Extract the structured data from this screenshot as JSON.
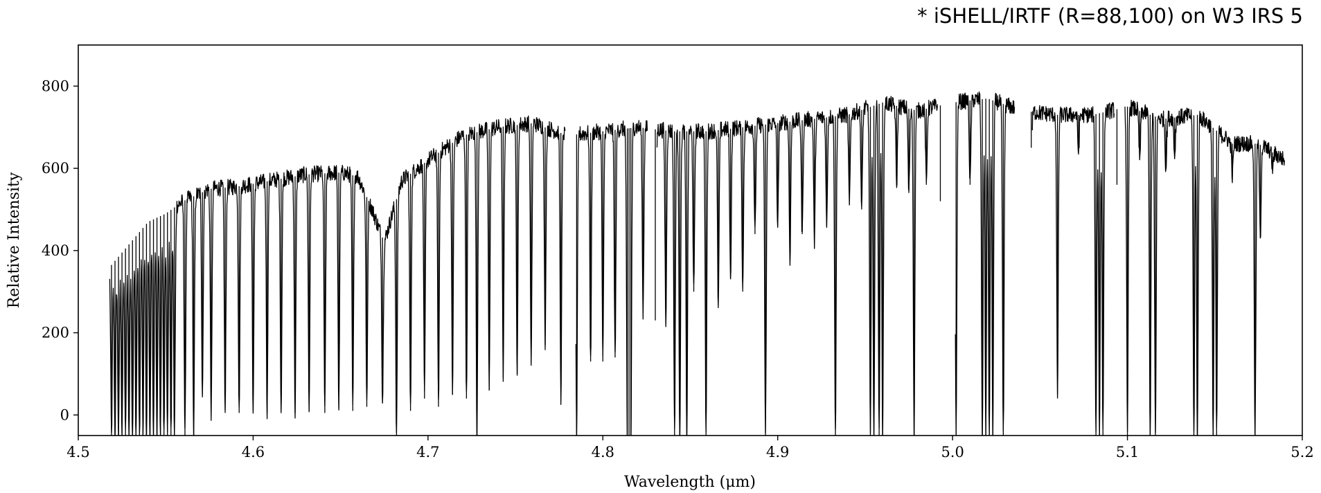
{
  "chart_data": {
    "type": "line",
    "title": "* iSHELL/IRTF (R=88,100) on W3 IRS 5",
    "xlabel": "Wavelength (μm)",
    "ylabel": "Relative Intensity",
    "xlim": [
      4.5,
      5.2
    ],
    "ylim": [
      -50,
      900
    ],
    "xticks": [
      "4.5",
      "4.6",
      "4.7",
      "4.8",
      "4.9",
      "5.0",
      "5.1",
      "5.2"
    ],
    "yticks": [
      "0",
      "200",
      "400",
      "600",
      "800"
    ],
    "grid": false,
    "line_color": "#000000",
    "continuum": {
      "x": [
        4.518,
        4.53,
        4.54,
        4.55,
        4.56,
        4.575,
        4.59,
        4.61,
        4.63,
        4.65,
        4.66,
        4.668,
        4.675,
        4.685,
        4.7,
        4.72,
        4.74,
        4.76,
        4.78,
        4.8,
        4.82,
        4.84,
        4.86,
        4.88,
        4.9,
        4.92,
        4.94,
        4.96,
        4.98,
        5.0,
        5.02,
        5.04,
        5.06,
        5.08,
        5.1,
        5.12,
        5.14,
        5.16,
        5.175,
        5.19
      ],
      "y": [
        360,
        420,
        470,
        490,
        520,
        550,
        555,
        570,
        585,
        590,
        580,
        500,
        420,
        570,
        620,
        680,
        700,
        710,
        680,
        690,
        700,
        690,
        690,
        700,
        710,
        720,
        730,
        760,
        740,
        760,
        770,
        740,
        730,
        730,
        750,
        720,
        730,
        660,
        660,
        620
      ]
    },
    "absorption_lines": [
      {
        "x": 4.519,
        "y": -50
      },
      {
        "x": 4.521,
        "y": -50
      },
      {
        "x": 4.523,
        "y": -50
      },
      {
        "x": 4.525,
        "y": -50
      },
      {
        "x": 4.527,
        "y": -50
      },
      {
        "x": 4.529,
        "y": -50
      },
      {
        "x": 4.531,
        "y": -50
      },
      {
        "x": 4.533,
        "y": -50
      },
      {
        "x": 4.535,
        "y": -50
      },
      {
        "x": 4.537,
        "y": -50
      },
      {
        "x": 4.539,
        "y": -50
      },
      {
        "x": 4.541,
        "y": -50
      },
      {
        "x": 4.543,
        "y": -50
      },
      {
        "x": 4.545,
        "y": -50
      },
      {
        "x": 4.547,
        "y": -50
      },
      {
        "x": 4.549,
        "y": -50
      },
      {
        "x": 4.551,
        "y": -50
      },
      {
        "x": 4.553,
        "y": -50
      },
      {
        "x": 4.555,
        "y": -50
      },
      {
        "x": 4.561,
        "y": -50
      },
      {
        "x": 4.566,
        "y": -50
      },
      {
        "x": 4.571,
        "y": 50
      },
      {
        "x": 4.576,
        "y": 5
      },
      {
        "x": 4.584,
        "y": 5
      },
      {
        "x": 4.592,
        "y": 5
      },
      {
        "x": 4.6,
        "y": 10
      },
      {
        "x": 4.608,
        "y": 5
      },
      {
        "x": 4.616,
        "y": 10
      },
      {
        "x": 4.624,
        "y": 5
      },
      {
        "x": 4.632,
        "y": 10
      },
      {
        "x": 4.641,
        "y": 5
      },
      {
        "x": 4.649,
        "y": 15
      },
      {
        "x": 4.657,
        "y": 10
      },
      {
        "x": 4.665,
        "y": 20
      },
      {
        "x": 4.674,
        "y": 30
      },
      {
        "x": 4.682,
        "y": -50
      },
      {
        "x": 4.69,
        "y": 10
      },
      {
        "x": 4.698,
        "y": 40
      },
      {
        "x": 4.706,
        "y": 20
      },
      {
        "x": 4.714,
        "y": 50
      },
      {
        "x": 4.722,
        "y": 40
      },
      {
        "x": 4.728,
        "y": -50
      },
      {
        "x": 4.735,
        "y": 60
      },
      {
        "x": 4.743,
        "y": 90
      },
      {
        "x": 4.751,
        "y": 100
      },
      {
        "x": 4.759,
        "y": 120
      },
      {
        "x": 4.767,
        "y": 170
      },
      {
        "x": 4.776,
        "y": 40
      },
      {
        "x": 4.785,
        "y": -50
      },
      {
        "x": 4.793,
        "y": 130
      },
      {
        "x": 4.8,
        "y": 130
      },
      {
        "x": 4.807,
        "y": 140
      },
      {
        "x": 4.814,
        "y": -50
      },
      {
        "x": 4.815,
        "y": -50
      },
      {
        "x": 4.816,
        "y": -50
      },
      {
        "x": 4.823,
        "y": 250
      },
      {
        "x": 4.83,
        "y": 230
      },
      {
        "x": 4.836,
        "y": 220
      },
      {
        "x": 4.841,
        "y": -50
      },
      {
        "x": 4.844,
        "y": -50
      },
      {
        "x": 4.848,
        "y": -50
      },
      {
        "x": 4.852,
        "y": 300
      },
      {
        "x": 4.859,
        "y": -50
      },
      {
        "x": 4.866,
        "y": 260
      },
      {
        "x": 4.873,
        "y": 330
      },
      {
        "x": 4.88,
        "y": 300
      },
      {
        "x": 4.887,
        "y": 440
      },
      {
        "x": 4.893,
        "y": -50
      },
      {
        "x": 4.9,
        "y": 460
      },
      {
        "x": 4.907,
        "y": 380
      },
      {
        "x": 4.914,
        "y": 440
      },
      {
        "x": 4.921,
        "y": 420
      },
      {
        "x": 4.928,
        "y": 460
      },
      {
        "x": 4.933,
        "y": -50
      },
      {
        "x": 4.941,
        "y": 510
      },
      {
        "x": 4.948,
        "y": 500
      },
      {
        "x": 4.953,
        "y": -50
      },
      {
        "x": 4.955,
        "y": -50
      },
      {
        "x": 4.958,
        "y": -50
      },
      {
        "x": 4.96,
        "y": -50
      },
      {
        "x": 4.968,
        "y": 560
      },
      {
        "x": 4.975,
        "y": 540
      },
      {
        "x": 4.978,
        "y": -50
      },
      {
        "x": 4.985,
        "y": 560
      },
      {
        "x": 4.993,
        "y": 520
      },
      {
        "x": 5.002,
        "y": -50
      },
      {
        "x": 5.01,
        "y": 560
      },
      {
        "x": 5.017,
        "y": -50
      },
      {
        "x": 5.019,
        "y": -50
      },
      {
        "x": 5.021,
        "y": -50
      },
      {
        "x": 5.023,
        "y": -50
      },
      {
        "x": 5.029,
        "y": -50
      },
      {
        "x": 5.045,
        "y": 650
      },
      {
        "x": 5.06,
        "y": 50
      },
      {
        "x": 5.072,
        "y": 640
      },
      {
        "x": 5.082,
        "y": -50
      },
      {
        "x": 5.084,
        "y": -50
      },
      {
        "x": 5.086,
        "y": -50
      },
      {
        "x": 5.094,
        "y": 560
      },
      {
        "x": 5.1,
        "y": -50
      },
      {
        "x": 5.107,
        "y": 620
      },
      {
        "x": 5.113,
        "y": -50
      },
      {
        "x": 5.116,
        "y": -50
      },
      {
        "x": 5.122,
        "y": 600
      },
      {
        "x": 5.127,
        "y": 630
      },
      {
        "x": 5.138,
        "y": -50
      },
      {
        "x": 5.14,
        "y": -50
      },
      {
        "x": 5.149,
        "y": -50
      },
      {
        "x": 5.151,
        "y": -50
      },
      {
        "x": 5.16,
        "y": 580
      },
      {
        "x": 5.173,
        "y": -50
      },
      {
        "x": 5.176,
        "y": 430
      },
      {
        "x": 5.183,
        "y": 600
      }
    ]
  }
}
